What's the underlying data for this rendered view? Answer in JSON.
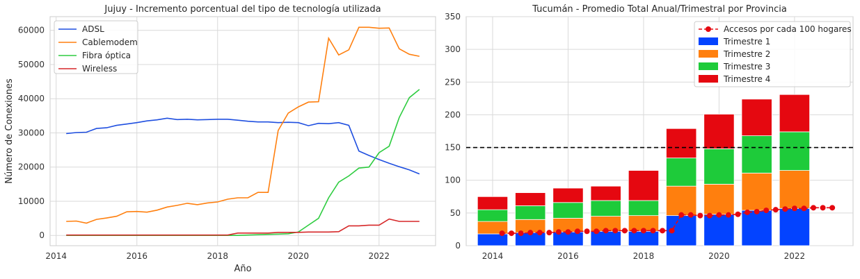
{
  "charts": [
    {
      "chart_data": {
        "type": "line",
        "title": "Jujuy - Incremento porcentual del tipo de tecnología utilizada",
        "xlabel": "Año",
        "ylabel": "Número de Conexiones",
        "xlim": [
          2013.85,
          2023.4
        ],
        "ylim": [
          -3000,
          64000
        ],
        "xticks": [
          2014,
          2016,
          2018,
          2020,
          2022
        ],
        "yticks": [
          0,
          10000,
          20000,
          30000,
          40000,
          50000,
          60000
        ],
        "grid": true,
        "legend_position": "top-left",
        "x": [
          2014.25,
          2014.5,
          2014.75,
          2015.0,
          2015.25,
          2015.5,
          2015.75,
          2016.0,
          2016.25,
          2016.5,
          2016.75,
          2017.0,
          2017.25,
          2017.5,
          2017.75,
          2018.0,
          2018.25,
          2018.5,
          2018.75,
          2019.0,
          2019.25,
          2019.5,
          2019.75,
          2020.0,
          2020.25,
          2020.5,
          2020.75,
          2021.0,
          2021.25,
          2021.5,
          2021.75,
          2022.0,
          2022.25,
          2022.5,
          2022.75,
          2023.0
        ],
        "series": [
          {
            "name": "ADSL",
            "color": "#1f4fe0",
            "values": [
              29800,
              30100,
              30200,
              31300,
              31500,
              32200,
              32600,
              33000,
              33500,
              33800,
              34300,
              33900,
              34000,
              33800,
              33900,
              34000,
              34000,
              33700,
              33400,
              33200,
              33200,
              33000,
              33100,
              33000,
              32100,
              32800,
              32700,
              33000,
              32200,
              24700,
              23400,
              22200,
              21100,
              20100,
              19200,
              18000
            ]
          },
          {
            "name": "Cablemodem",
            "color": "#ff7f0e",
            "values": [
              4100,
              4200,
              3600,
              4700,
              5100,
              5600,
              6900,
              7000,
              6800,
              7400,
              8300,
              8800,
              9400,
              9000,
              9500,
              9800,
              10600,
              11000,
              11000,
              12600,
              12600,
              30700,
              35800,
              37600,
              39000,
              39100,
              57700,
              52800,
              54300,
              60900,
              60900,
              60600,
              60700,
              54600,
              53000,
              52400
            ]
          },
          {
            "name": "Fibra óptica",
            "color": "#2ecc40",
            "values": [
              0,
              0,
              0,
              0,
              0,
              0,
              0,
              0,
              0,
              0,
              0,
              0,
              0,
              0,
              0,
              0,
              0,
              0,
              100,
              200,
              300,
              400,
              500,
              1000,
              3000,
              5000,
              11000,
              15600,
              17400,
              19700,
              20000,
              24200,
              26100,
              34500,
              40300,
              42700
            ]
          },
          {
            "name": "Wireless",
            "color": "#d62728",
            "values": [
              100,
              100,
              100,
              100,
              100,
              100,
              100,
              100,
              100,
              100,
              100,
              100,
              100,
              100,
              100,
              100,
              100,
              700,
              700,
              700,
              700,
              900,
              900,
              900,
              1000,
              1000,
              1000,
              1100,
              2800,
              2800,
              3000,
              3000,
              4800,
              4100,
              4100,
              4100
            ]
          }
        ]
      }
    },
    {
      "chart_data": {
        "type": "bar",
        "stacked": true,
        "title": "Tucumán - Promedio Total Anual/Trimestral por Provincia",
        "xlabel": "",
        "ylabel": "",
        "xlim": [
          2013.3,
          2023.55
        ],
        "ylim": [
          0,
          350
        ],
        "xticks": [
          2014,
          2016,
          2018,
          2020,
          2022
        ],
        "yticks": [
          0,
          50,
          100,
          150,
          200,
          250,
          300,
          350
        ],
        "grid": true,
        "legend_position": "top-right",
        "reference_line": {
          "y": 150,
          "style": "dashed",
          "color": "#000000"
        },
        "categories": [
          2014,
          2015,
          2016,
          2017,
          2018,
          2019,
          2020,
          2021,
          2022
        ],
        "series": [
          {
            "name": "Trimestre 1",
            "color": "#0343ff",
            "values": [
              18,
              20,
              21,
              22,
              22,
              46,
              48,
              54,
              57
            ]
          },
          {
            "name": "Trimestre 2",
            "color": "#ff7f0e",
            "values": [
              19,
              20,
              21,
              23,
              24,
              45,
              46,
              57,
              58
            ]
          },
          {
            "name": "Trimestre 3",
            "color": "#1ecb3a",
            "values": [
              18,
              21,
              24,
              24,
              23,
              43,
              54,
              57,
              59
            ]
          },
          {
            "name": "Trimestre 4",
            "color": "#e50810",
            "values": [
              20,
              20,
              22,
              22,
              46,
              45,
              53,
              56,
              57
            ]
          }
        ],
        "line_series": {
          "name": "Accesos por cada 100 hogares",
          "color": "#e50810",
          "x": [
            2014.25,
            2014.5,
            2014.75,
            2015.0,
            2015.25,
            2015.5,
            2015.75,
            2016.0,
            2016.25,
            2016.5,
            2016.75,
            2017.0,
            2017.25,
            2017.5,
            2017.75,
            2018.0,
            2018.25,
            2018.5,
            2018.75,
            2019.0,
            2019.25,
            2019.5,
            2019.75,
            2020.0,
            2020.25,
            2020.5,
            2020.75,
            2021.0,
            2021.25,
            2021.5,
            2021.75,
            2022.0,
            2022.25,
            2022.5,
            2022.75,
            2023.0
          ],
          "values": [
            19,
            19,
            19,
            20,
            20,
            20,
            21,
            21,
            22,
            22,
            22,
            23,
            23,
            23,
            23,
            23,
            23,
            23,
            23,
            47,
            47,
            46,
            46,
            47,
            47,
            48,
            51,
            52,
            54,
            55,
            56,
            57,
            57,
            58,
            58,
            58
          ]
        }
      }
    }
  ]
}
